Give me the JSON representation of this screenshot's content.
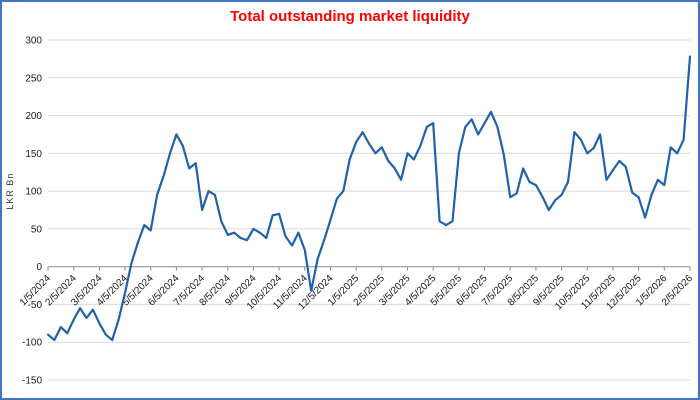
{
  "figure": {
    "border_color": "#4472c4",
    "background_color": "#ffffff"
  },
  "chart_data": {
    "type": "line",
    "title": "Total outstanding market liquidity",
    "title_color": "#ff0000",
    "xlabel": "",
    "ylabel": "LKR  Bn",
    "ylim": [
      -150,
      300
    ],
    "ytick_step": 50,
    "grid": true,
    "legend_position": "none",
    "line_color": "#1f62a9",
    "gridline_color": "#d9d9d9",
    "axis_color": "#8c8c8c",
    "x_step_months": 0.25,
    "x_tick_labels": [
      "1/5/2024",
      "2/5/2024",
      "3/5/2024",
      "4/5/2024",
      "5/5/2024",
      "6/5/2024",
      "7/5/2024",
      "8/5/2024",
      "9/5/2024",
      "10/5/2024",
      "11/5/2024",
      "12/5/2024",
      "1/5/2025",
      "2/5/2025",
      "3/5/2025",
      "4/5/2025",
      "5/5/2025",
      "6/5/2025",
      "7/5/2025",
      "8/5/2025",
      "9/5/2025",
      "10/5/2025",
      "11/5/2025",
      "12/5/2025",
      "1/5/2026",
      "2/5/2026"
    ],
    "series": [
      {
        "name": "Total outstanding market liquidity",
        "values": [
          -90,
          -97,
          -80,
          -88,
          -70,
          -55,
          -68,
          -57,
          -75,
          -90,
          -97,
          -70,
          -35,
          5,
          32,
          55,
          48,
          95,
          120,
          150,
          175,
          160,
          130,
          137,
          75,
          100,
          95,
          60,
          42,
          45,
          38,
          35,
          50,
          45,
          38,
          68,
          70,
          40,
          28,
          45,
          22,
          -32,
          10,
          35,
          62,
          90,
          100,
          142,
          165,
          178,
          163,
          150,
          158,
          140,
          130,
          115,
          150,
          142,
          160,
          185,
          190,
          60,
          55,
          60,
          150,
          185,
          195,
          175,
          190,
          205,
          185,
          148,
          92,
          97,
          130,
          112,
          108,
          93,
          75,
          88,
          95,
          112,
          178,
          168,
          150,
          157,
          175,
          115,
          128,
          140,
          132,
          98,
          92,
          65,
          95,
          115,
          108,
          158,
          150,
          168,
          278
        ]
      }
    ]
  }
}
